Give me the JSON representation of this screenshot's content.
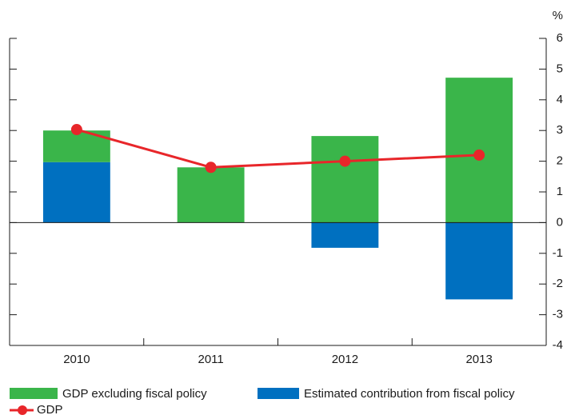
{
  "chart_data": {
    "type": "stacked_bar_line",
    "y_unit": "%",
    "categories": [
      "2010",
      "2011",
      "2012",
      "2013"
    ],
    "series": [
      {
        "name": "Estimated contribution from fiscal policy",
        "color": "#0070c0",
        "values": [
          1.97,
          0,
          -0.82,
          -2.5
        ]
      },
      {
        "name": "GDP excluding fiscal policy",
        "color": "#3ab54a",
        "values": [
          1.03,
          1.8,
          2.82,
          4.72
        ]
      }
    ],
    "line": {
      "name": "GDP",
      "color": "#e8262a",
      "values": [
        3.03,
        1.8,
        2.0,
        2.2
      ]
    },
    "ylim": [
      -4,
      6
    ],
    "yticks": [
      -4,
      -3,
      -2,
      -1,
      0,
      1,
      2,
      3,
      4,
      5,
      6
    ]
  }
}
